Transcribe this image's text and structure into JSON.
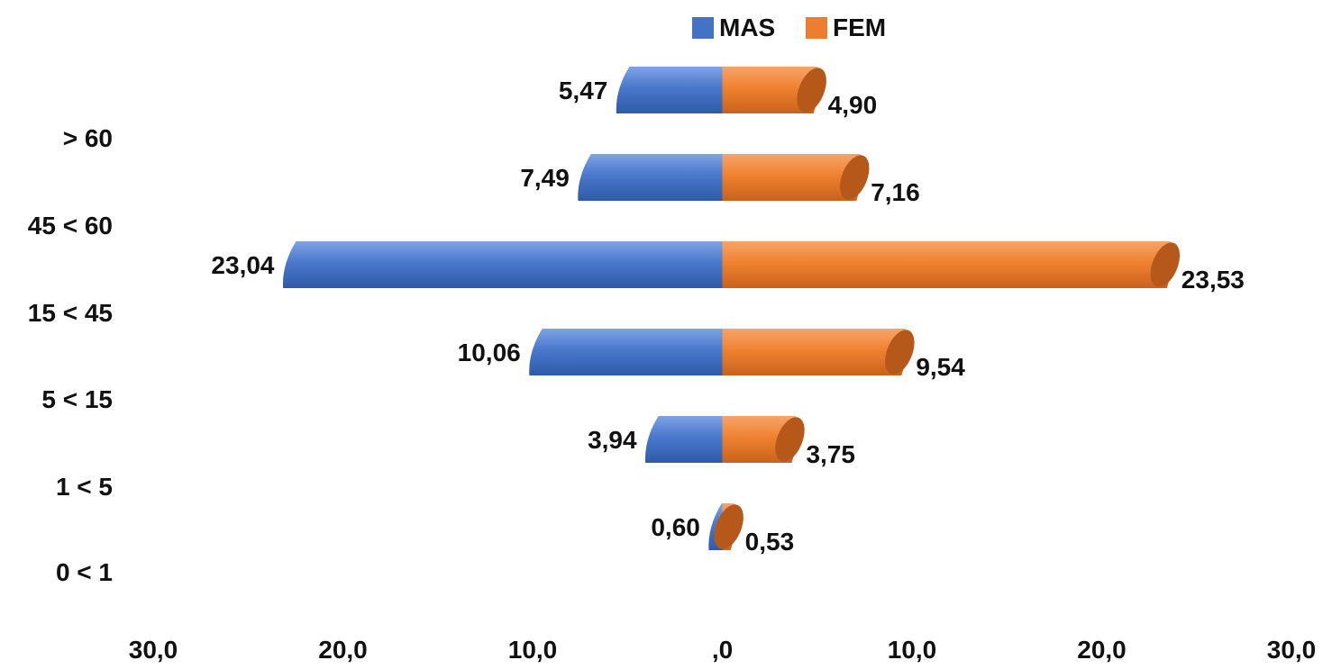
{
  "chart_data": {
    "type": "bar",
    "orientation": "horizontal-diverging",
    "title": "",
    "xlabel": "",
    "ylabel": "",
    "categories": [
      "> 60",
      "45 < 60",
      "15 < 45",
      "5 < 15",
      "1 < 5",
      "0 < 1"
    ],
    "series": [
      {
        "name": "MAS",
        "color": "#4472c4",
        "values": [
          5.47,
          7.49,
          23.04,
          10.06,
          3.94,
          0.6
        ],
        "labels": [
          "5,47",
          "7,49",
          "23,04",
          "10,06",
          "3,94",
          "0,60"
        ]
      },
      {
        "name": "FEM",
        "color": "#ed7d31",
        "values": [
          4.9,
          7.16,
          23.53,
          9.54,
          3.75,
          0.53
        ],
        "labels": [
          "4,90",
          "7,16",
          "23,53",
          "9,54",
          "3,75",
          "0,53"
        ]
      }
    ],
    "xlim": [
      -30,
      30
    ],
    "x_ticks": [
      {
        "value": -30,
        "label": "30,0"
      },
      {
        "value": -20,
        "label": "20,0"
      },
      {
        "value": -10,
        "label": "10,0"
      },
      {
        "value": 0,
        "label": ",0"
      },
      {
        "value": 10,
        "label": "10,0"
      },
      {
        "value": 20,
        "label": "20,0"
      },
      {
        "value": 30,
        "label": "30,0"
      }
    ],
    "legend_position": "top-center",
    "grid": false,
    "style": "3d-cylinder"
  }
}
